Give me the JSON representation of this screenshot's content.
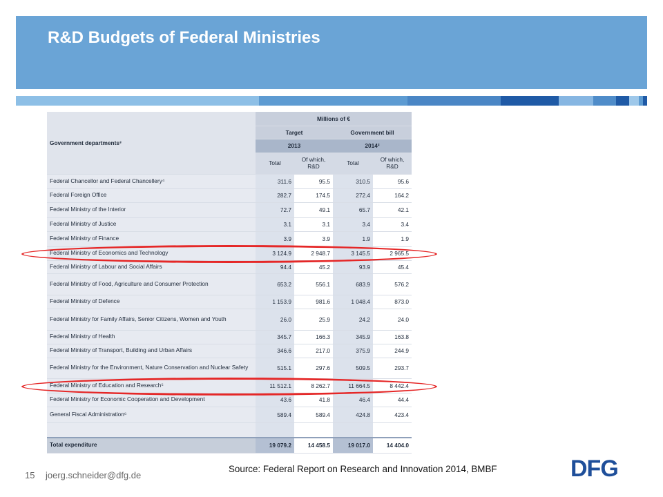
{
  "slide": {
    "title": "R&D Budgets of Federal Ministries",
    "page_number": "15",
    "email": "joerg.schneider@dfg.de",
    "source": "Source: Federal Report on Research and Innovation 2014, BMBF",
    "logo_text": "DFG",
    "header_color": "#6aa4d6",
    "highlight_color": "#e52727"
  },
  "table": {
    "dept_header": "Government departments³",
    "millions": "Millions of €",
    "target": "Target",
    "gov_bill": "Government bill",
    "year1": "2013",
    "year2": "2014²",
    "total": "Total",
    "of_which": "Of which, R&D",
    "rows": [
      {
        "name": "Federal Chancellor and Federal Chancellery⁴",
        "v": [
          "311.6",
          "95.5",
          "310.5",
          "95.6"
        ]
      },
      {
        "name": "Federal Foreign Office",
        "v": [
          "282.7",
          "174.5",
          "272.4",
          "164.2"
        ]
      },
      {
        "name": "Federal Ministry of the Interior",
        "v": [
          "72.7",
          "49.1",
          "65.7",
          "42.1"
        ]
      },
      {
        "name": "Federal Ministry of Justice",
        "v": [
          "3.1",
          "3.1",
          "3.4",
          "3.4"
        ]
      },
      {
        "name": "Federal Ministry of Finance",
        "v": [
          "3.9",
          "3.9",
          "1.9",
          "1.9"
        ]
      },
      {
        "name": "Federal Ministry of Economics and Technology",
        "v": [
          "3 124.9",
          "2 948.7",
          "3 145.5",
          "2 965.5"
        ]
      },
      {
        "name": "Federal Ministry of Labour and Social Affairs",
        "v": [
          "94.4",
          "45.2",
          "93.9",
          "45.4"
        ]
      },
      {
        "name": "Federal Ministry of Food, Agriculture and Consumer Protection",
        "v": [
          "653.2",
          "556.1",
          "683.9",
          "576.2"
        ]
      },
      {
        "name": "Federal Ministry of Defence",
        "v": [
          "1 153.9",
          "981.6",
          "1 048.4",
          "873.0"
        ]
      },
      {
        "name": "Federal Ministry for Family Affairs, Senior Citizens, Women and Youth",
        "v": [
          "26.0",
          "25.9",
          "24.2",
          "24.0"
        ]
      },
      {
        "name": "Federal Ministry of Health",
        "v": [
          "345.7",
          "166.3",
          "345.9",
          "163.8"
        ]
      },
      {
        "name": "Federal Ministry of Transport, Building and Urban Affairs",
        "v": [
          "346.6",
          "217.0",
          "375.9",
          "244.9"
        ]
      },
      {
        "name": "Federal Ministry for the Environment, Nature Conservation and Nuclear Safety",
        "v": [
          "515.1",
          "297.6",
          "509.5",
          "293.7"
        ]
      },
      {
        "name": "Federal Ministry of Education and Research⁵",
        "v": [
          "11 512.1",
          "8 262.7",
          "11 664.5",
          "8 442.4"
        ]
      },
      {
        "name": "Federal Ministry for Economic Cooperation and Development",
        "v": [
          "43.6",
          "41.8",
          "46.4",
          "44.4"
        ]
      },
      {
        "name": "General Fiscal Administration⁶",
        "v": [
          "589.4",
          "589.4",
          "424.8",
          "423.4"
        ]
      }
    ],
    "total_row": {
      "name": "Total expenditure",
      "v": [
        "19 079.2",
        "14 458.5",
        "19 017.0",
        "14 404.0"
      ]
    }
  }
}
